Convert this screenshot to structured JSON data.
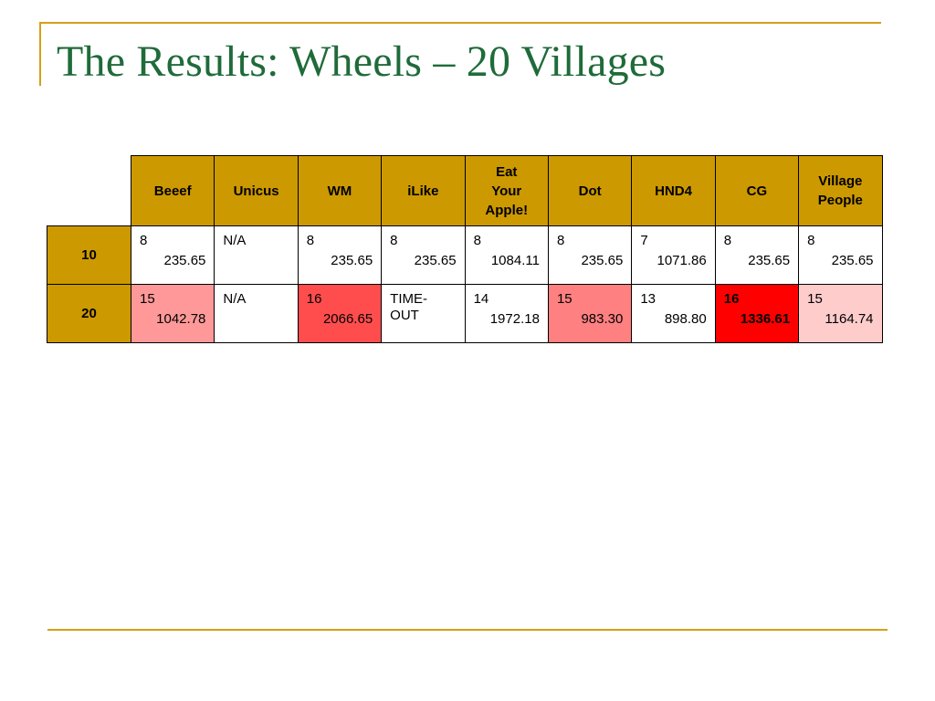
{
  "title": "The Results: Wheels – 20 Villages",
  "colors": {
    "title": "#1f6b3a",
    "rule": "#d4a017",
    "header_fill": "#cc9900",
    "cell_white": "#ffffff",
    "cell_light_pink": "#ffcccc",
    "cell_salmon": "#ff9999",
    "cell_rose": "#ff8080",
    "cell_red": "#ff4d4d",
    "cell_bright_red": "#ff0000"
  },
  "table": {
    "columns": [
      "Beeef",
      "Unicus",
      "WM",
      "iLike",
      "Eat Your Apple!",
      "Dot",
      "HND4",
      "CG",
      "Village People"
    ],
    "rows": [
      {
        "label": "10",
        "cells": [
          {
            "top": "8",
            "bottom": "235.65",
            "fill": "#ffffff",
            "bold": false
          },
          {
            "top": "N/A",
            "bottom": "",
            "fill": "#ffffff",
            "bold": false
          },
          {
            "top": "8",
            "bottom": "235.65",
            "fill": "#ffffff",
            "bold": false
          },
          {
            "top": "8",
            "bottom": "235.65",
            "fill": "#ffffff",
            "bold": false
          },
          {
            "top": "8",
            "bottom": "1084.11",
            "fill": "#ffffff",
            "bold": false
          },
          {
            "top": "8",
            "bottom": "235.65",
            "fill": "#ffffff",
            "bold": false
          },
          {
            "top": "7",
            "bottom": "1071.86",
            "fill": "#ffffff",
            "bold": false
          },
          {
            "top": "8",
            "bottom": "235.65",
            "fill": "#ffffff",
            "bold": false
          },
          {
            "top": "8",
            "bottom": "235.65",
            "fill": "#ffffff",
            "bold": false
          }
        ]
      },
      {
        "label": "20",
        "cells": [
          {
            "top": "15",
            "bottom": "1042.78",
            "fill": "#ff9999",
            "bold": false
          },
          {
            "top": "N/A",
            "bottom": "",
            "fill": "#ffffff",
            "bold": false
          },
          {
            "top": "16",
            "bottom": "2066.65",
            "fill": "#ff4d4d",
            "bold": false
          },
          {
            "top": "TIME-OUT",
            "bottom": "",
            "fill": "#ffffff",
            "bold": false
          },
          {
            "top": "14",
            "bottom": "1972.18",
            "fill": "#ffffff",
            "bold": false
          },
          {
            "top": "15",
            "bottom": "983.30",
            "fill": "#ff8080",
            "bold": false
          },
          {
            "top": "13",
            "bottom": "898.80",
            "fill": "#ffffff",
            "bold": false
          },
          {
            "top": "16",
            "bottom": "1336.61",
            "fill": "#ff0000",
            "bold": true
          },
          {
            "top": "15",
            "bottom": "1164.74",
            "fill": "#ffcccc",
            "bold": false
          }
        ]
      }
    ]
  }
}
